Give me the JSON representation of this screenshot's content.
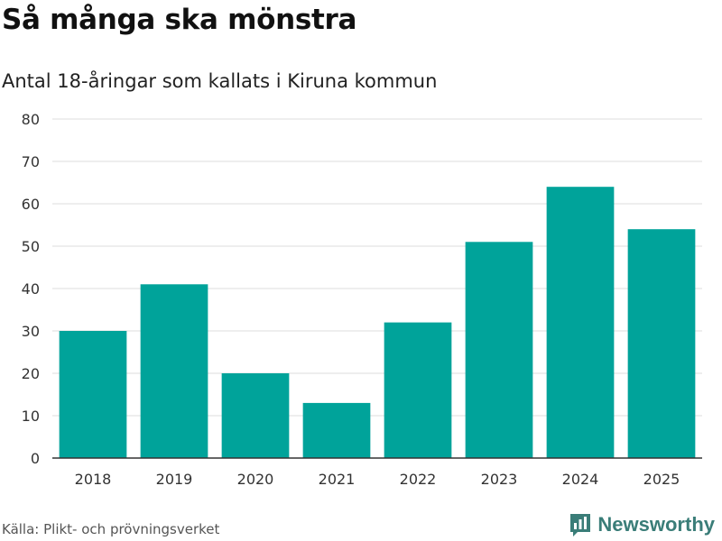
{
  "header": {
    "title": "Så många ska mönstra",
    "subtitle": "Antal 18-åringar som kallats i Kiruna kommun"
  },
  "footer": {
    "source": "Källa: Plikt- och prövningsverket",
    "brand": "Newsworthy"
  },
  "colors": {
    "bar": "#00a39a",
    "grid": "#dddddd",
    "axis": "#333333",
    "brand": "#3a7d78"
  },
  "chart_data": {
    "type": "bar",
    "categories": [
      "2018",
      "2019",
      "2020",
      "2021",
      "2022",
      "2023",
      "2024",
      "2025"
    ],
    "values": [
      30,
      41,
      20,
      13,
      32,
      51,
      64,
      54
    ],
    "title": "Så många ska mönstra",
    "subtitle": "Antal 18-åringar som kallats i Kiruna kommun",
    "xlabel": "",
    "ylabel": "",
    "ylim": [
      0,
      80
    ],
    "yticks": [
      0,
      10,
      20,
      30,
      40,
      50,
      60,
      70,
      80
    ],
    "grid": true,
    "legend": "none"
  }
}
